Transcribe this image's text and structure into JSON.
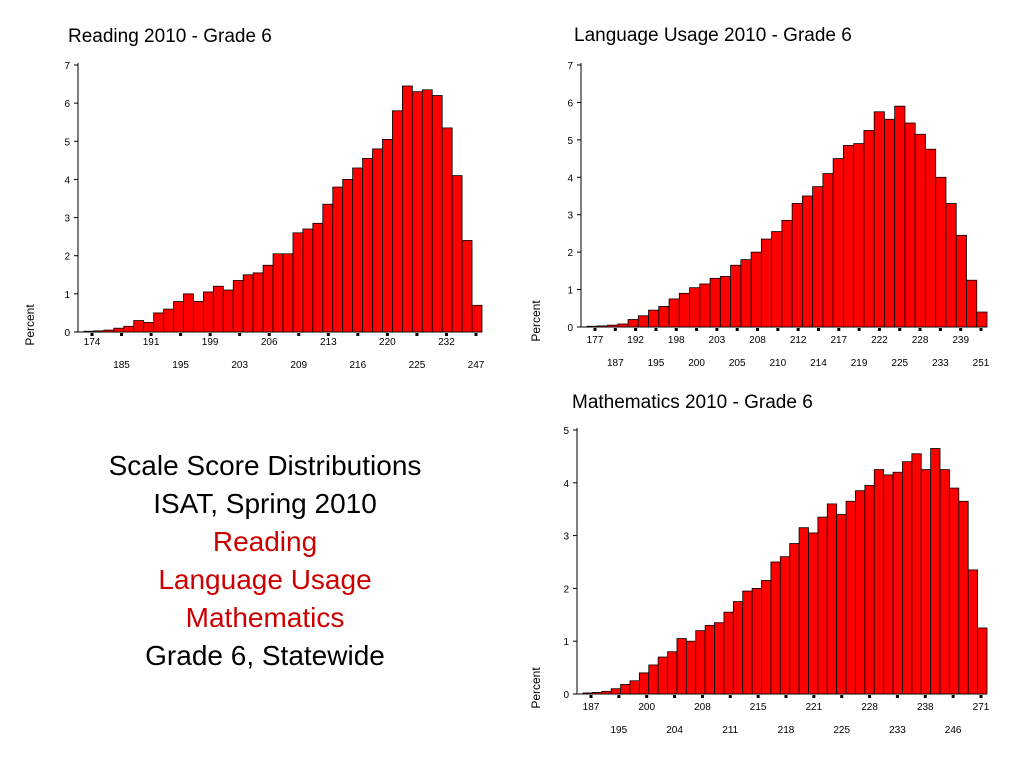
{
  "caption": {
    "line1": "Scale Score Distributions",
    "line2": "ISAT, Spring 2010",
    "subject1": "Reading",
    "subject2": "Language Usage",
    "subject3": "Mathematics",
    "line6": "Grade 6, Statewide"
  },
  "colors": {
    "bar": "#ff0000",
    "subject_text": "#cc0000"
  },
  "chart_data": [
    {
      "type": "bar",
      "title": "Reading 2010 - Grade 6",
      "ylabel": "Percent",
      "xlabel": "",
      "ylim": [
        0,
        7
      ],
      "yticks": [
        0,
        1,
        2,
        3,
        4,
        5,
        6,
        7
      ],
      "xticks_row1": [
        "174",
        "191",
        "199",
        "206",
        "213",
        "220",
        "232"
      ],
      "xticks_row2": [
        "185",
        "195",
        "203",
        "209",
        "216",
        "225",
        "247"
      ],
      "values": [
        0.02,
        0.03,
        0.05,
        0.1,
        0.15,
        0.3,
        0.25,
        0.5,
        0.6,
        0.8,
        1.0,
        0.8,
        1.05,
        1.2,
        1.1,
        1.35,
        1.5,
        1.55,
        1.75,
        2.05,
        2.05,
        2.6,
        2.7,
        2.85,
        3.35,
        3.8,
        4.0,
        4.3,
        4.55,
        4.8,
        5.05,
        5.8,
        6.45,
        6.3,
        6.35,
        6.2,
        5.35,
        4.1,
        2.4,
        0.7
      ]
    },
    {
      "type": "bar",
      "title": "Language Usage 2010 - Grade 6",
      "ylabel": "Percent",
      "xlabel": "",
      "ylim": [
        0,
        7
      ],
      "yticks": [
        0,
        1,
        2,
        3,
        4,
        5,
        6,
        7
      ],
      "xticks_row1": [
        "177",
        "192",
        "198",
        "203",
        "208",
        "212",
        "217",
        "222",
        "228",
        "239"
      ],
      "xticks_row2": [
        "187",
        "195",
        "200",
        "205",
        "210",
        "214",
        "219",
        "225",
        "233",
        "251"
      ],
      "values": [
        0.02,
        0.03,
        0.05,
        0.08,
        0.2,
        0.3,
        0.45,
        0.55,
        0.75,
        0.9,
        1.05,
        1.15,
        1.3,
        1.35,
        1.65,
        1.8,
        2.0,
        2.35,
        2.55,
        2.85,
        3.3,
        3.5,
        3.75,
        4.1,
        4.5,
        4.85,
        4.9,
        5.25,
        5.75,
        5.55,
        5.9,
        5.45,
        5.15,
        4.75,
        4.0,
        3.3,
        2.45,
        1.25,
        0.4
      ]
    },
    {
      "type": "bar",
      "title": "Mathematics 2010 - Grade 6",
      "ylabel": "Percent",
      "xlabel": "",
      "ylim": [
        0,
        5
      ],
      "yticks": [
        0,
        1,
        2,
        3,
        4,
        5
      ],
      "xticks_row1": [
        "187",
        "200",
        "208",
        "215",
        "221",
        "228",
        "238",
        "271"
      ],
      "xticks_row2": [
        "195",
        "204",
        "211",
        "218",
        "225",
        "233",
        "246"
      ],
      "values": [
        0.02,
        0.03,
        0.05,
        0.1,
        0.18,
        0.25,
        0.4,
        0.55,
        0.7,
        0.8,
        1.05,
        1.0,
        1.2,
        1.3,
        1.35,
        1.55,
        1.75,
        1.95,
        2.0,
        2.15,
        2.5,
        2.6,
        2.85,
        3.15,
        3.05,
        3.35,
        3.6,
        3.4,
        3.65,
        3.85,
        3.95,
        4.25,
        4.15,
        4.2,
        4.4,
        4.55,
        4.25,
        4.65,
        4.25,
        3.9,
        3.65,
        2.35,
        1.25
      ]
    }
  ]
}
